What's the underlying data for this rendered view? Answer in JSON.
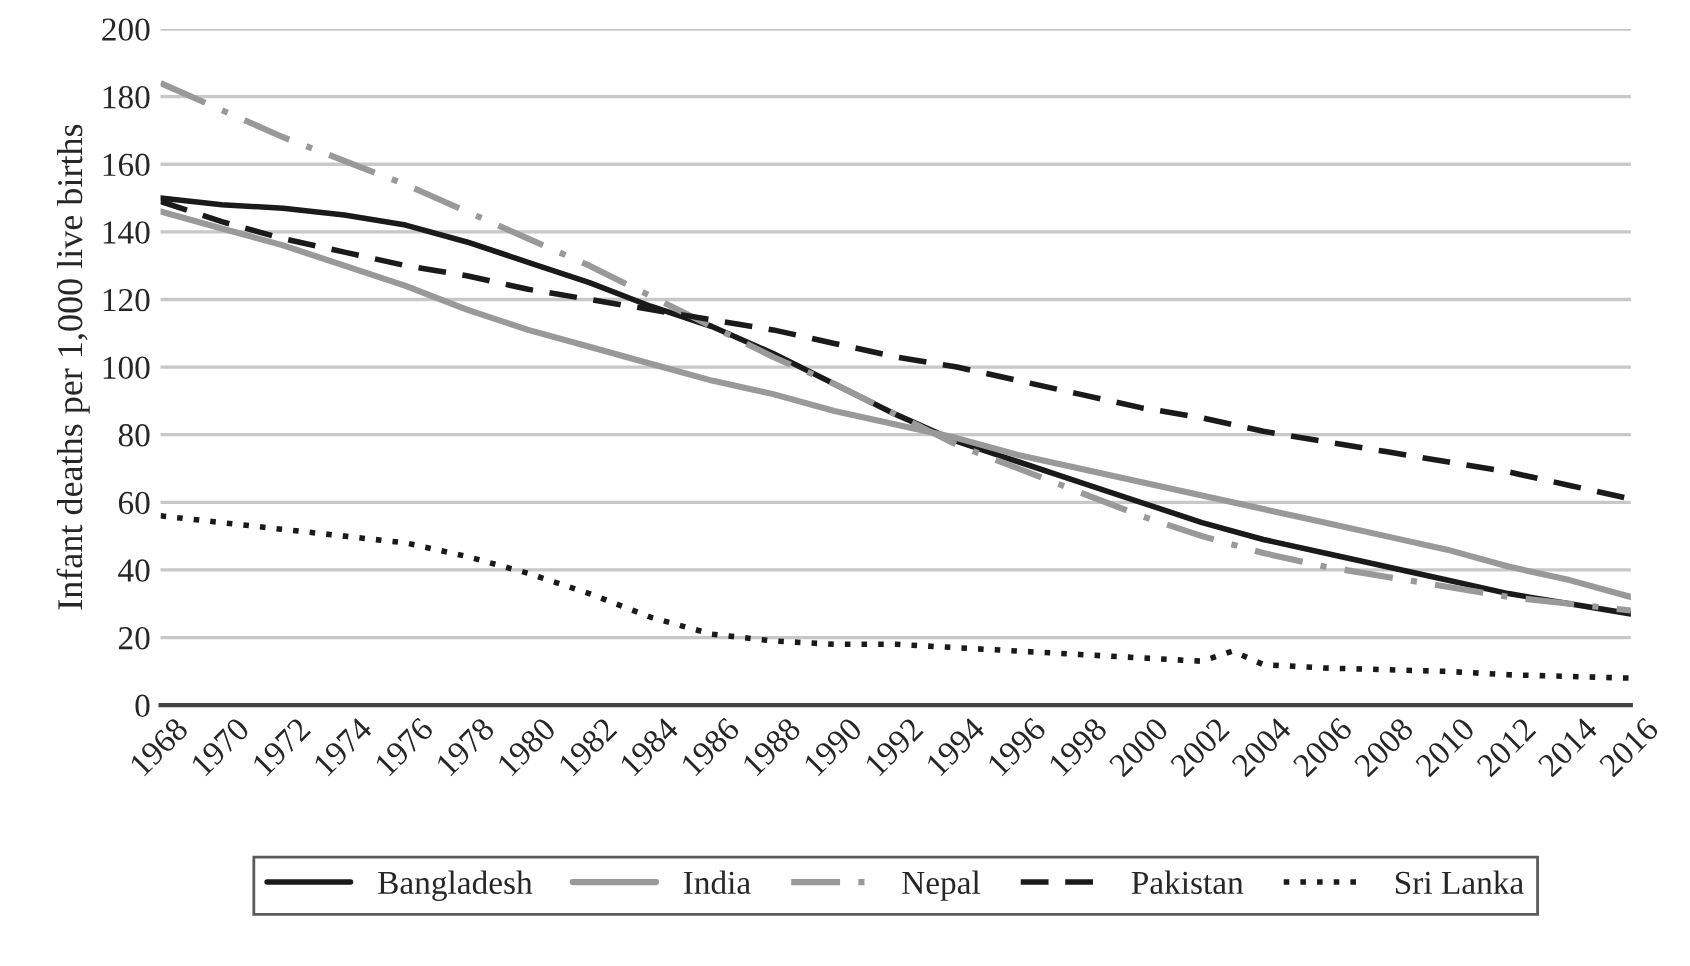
{
  "chart_data": {
    "type": "line",
    "ylabel": "Infant deaths per 1,000 live births",
    "x": [
      1968,
      1970,
      1972,
      1974,
      1976,
      1978,
      1980,
      1982,
      1984,
      1986,
      1988,
      1990,
      1992,
      1994,
      1996,
      1998,
      2000,
      2002,
      2004,
      2006,
      2008,
      2010,
      2012,
      2014,
      2016
    ],
    "xlim": [
      1968,
      2016
    ],
    "xticks": [
      1968,
      1970,
      1972,
      1974,
      1976,
      1978,
      1980,
      1982,
      1984,
      1986,
      1988,
      1990,
      1992,
      1994,
      1996,
      1998,
      2000,
      2002,
      2004,
      2006,
      2008,
      2010,
      2012,
      2014,
      2016
    ],
    "ylim": [
      0,
      200
    ],
    "yticks": [
      0,
      20,
      40,
      60,
      80,
      100,
      120,
      140,
      160,
      180,
      200
    ],
    "grid": "y",
    "legend": "bottom",
    "marker": "none",
    "series": [
      {
        "name": "Bangladesh",
        "color": "#1a1a1a",
        "line_style": "solid",
        "values": [
          150,
          148,
          147,
          145,
          142,
          137,
          131,
          125,
          118,
          112,
          104,
          95,
          86,
          78,
          72,
          66,
          60,
          54,
          49,
          45,
          41,
          37,
          33,
          30,
          27
        ]
      },
      {
        "name": "India",
        "color": "#999999",
        "line_style": "solid",
        "values": [
          146,
          141,
          136,
          130,
          124,
          117,
          111,
          106,
          101,
          96,
          92,
          87,
          83,
          79,
          74,
          70,
          66,
          62,
          58,
          54,
          50,
          46,
          41,
          37,
          32
        ]
      },
      {
        "name": "Nepal",
        "color": "#999999",
        "line_style": "dashdot",
        "values": [
          184,
          176,
          168,
          161,
          154,
          146,
          138,
          130,
          121,
          112,
          103,
          95,
          86,
          77,
          70,
          63,
          56,
          50,
          45,
          41,
          38,
          35,
          32,
          30,
          28
        ]
      },
      {
        "name": "Pakistan",
        "color": "#1a1a1a",
        "line_style": "dashed",
        "values": [
          149,
          143,
          138,
          134,
          130,
          127,
          123,
          120,
          117,
          114,
          111,
          107,
          103,
          100,
          96,
          92,
          88,
          85,
          81,
          78,
          75,
          72,
          69,
          65,
          61
        ]
      },
      {
        "name": "Sri Lanka",
        "color": "#1a1a1a",
        "line_style": "dotted",
        "x": [
          1968,
          1970,
          1972,
          1974,
          1976,
          1978,
          1980,
          1982,
          1984,
          1986,
          1988,
          1990,
          1992,
          1994,
          1996,
          1998,
          2000,
          2002,
          2003,
          2004,
          2006,
          2008,
          2010,
          2012,
          2014,
          2016
        ],
        "values": [
          56,
          54,
          52,
          50,
          48,
          44,
          39,
          33,
          26,
          21,
          19,
          18,
          18,
          17,
          16,
          15,
          14,
          13,
          16,
          12,
          11,
          10.5,
          10,
          9,
          8.5,
          8
        ]
      }
    ]
  }
}
